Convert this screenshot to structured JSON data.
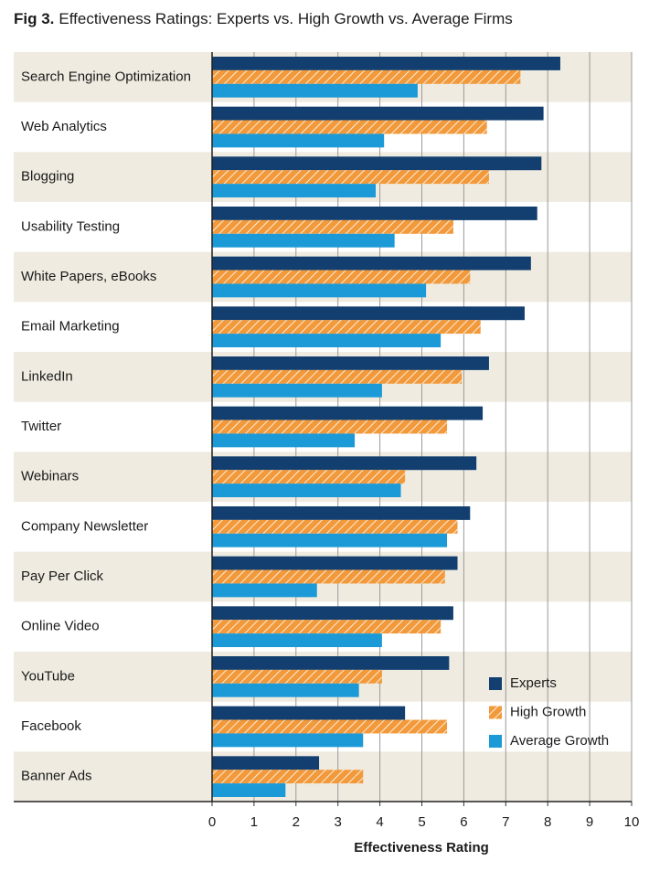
{
  "chart_data": {
    "type": "hbar",
    "figure_label": "Fig 3.",
    "title": "Effectiveness Ratings: Experts vs. High Growth vs. Average Firms",
    "xlabel": "Effectiveness Rating",
    "categories": [
      "Search Engine Optimization",
      "Web Analytics",
      "Blogging",
      "Usability Testing",
      "White Papers, eBooks",
      "Email Marketing",
      "LinkedIn",
      "Twitter",
      "Webinars",
      "Company Newsletter",
      "Pay Per Click",
      "Online Video",
      "YouTube",
      "Facebook",
      "Banner Ads"
    ],
    "series": [
      {
        "name": "Experts",
        "color": "#123f70",
        "values": [
          8.3,
          7.9,
          7.85,
          7.75,
          7.6,
          7.45,
          6.6,
          6.45,
          6.3,
          6.15,
          5.85,
          5.75,
          5.65,
          4.6,
          2.55
        ]
      },
      {
        "name": "High Growth",
        "color": "#f29a3b",
        "pattern": "hatch",
        "values": [
          7.35,
          6.55,
          6.6,
          5.75,
          6.15,
          6.4,
          5.95,
          5.6,
          4.6,
          5.85,
          5.55,
          5.45,
          4.05,
          5.6,
          3.6
        ]
      },
      {
        "name": "Average Growth",
        "color": "#1b9ad7",
        "values": [
          4.9,
          4.1,
          3.9,
          4.35,
          5.1,
          5.45,
          4.05,
          3.4,
          4.5,
          5.6,
          2.5,
          4.05,
          3.5,
          3.6,
          1.75
        ]
      }
    ],
    "xlim": [
      0,
      10
    ],
    "xticks": [
      0,
      1,
      2,
      3,
      4,
      5,
      6,
      7,
      8,
      9,
      10
    ],
    "grid": true,
    "legend": "lower right",
    "row_shading": "#efebe0"
  }
}
